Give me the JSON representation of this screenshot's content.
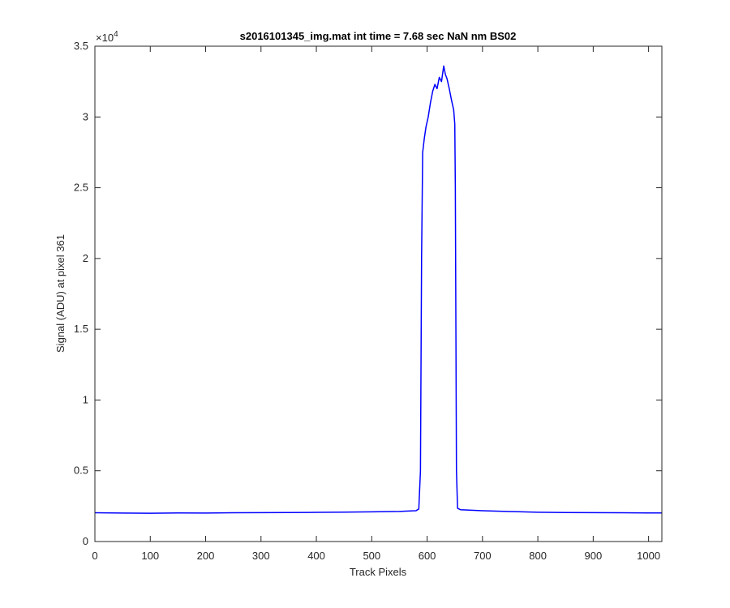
{
  "chart_data": {
    "type": "line",
    "title": "s2016101345_img.mat int time = 7.68 sec  NaN nm BS02",
    "xlabel": "Track Pixels",
    "ylabel": "Signal (ADU) at pixel 361",
    "xlim": [
      0,
      1024
    ],
    "ylim": [
      0,
      35000
    ],
    "x_ticks": [
      0,
      100,
      200,
      300,
      400,
      500,
      600,
      700,
      800,
      900,
      1000
    ],
    "x_tick_labels": [
      "0",
      "100",
      "200",
      "300",
      "400",
      "500",
      "600",
      "700",
      "800",
      "900",
      "1000"
    ],
    "y_ticks": [
      0,
      5000,
      10000,
      15000,
      20000,
      25000,
      30000,
      35000
    ],
    "y_tick_labels": [
      "0",
      "0.5",
      "1",
      "1.5",
      "2",
      "2.5",
      "3",
      "3.5"
    ],
    "y_exponent": {
      "base": "×10",
      "power": "4"
    },
    "grid": false,
    "series": [
      {
        "color": "#0000ff",
        "points": [
          [
            0,
            2030
          ],
          [
            50,
            2010
          ],
          [
            100,
            2000
          ],
          [
            150,
            2020
          ],
          [
            200,
            2010
          ],
          [
            250,
            2030
          ],
          [
            300,
            2040
          ],
          [
            350,
            2050
          ],
          [
            400,
            2060
          ],
          [
            450,
            2080
          ],
          [
            500,
            2100
          ],
          [
            550,
            2130
          ],
          [
            580,
            2180
          ],
          [
            585,
            2300
          ],
          [
            588,
            5000
          ],
          [
            590,
            20000
          ],
          [
            592,
            27500
          ],
          [
            595,
            28500
          ],
          [
            598,
            29300
          ],
          [
            602,
            30000
          ],
          [
            606,
            31000
          ],
          [
            610,
            31800
          ],
          [
            614,
            32300
          ],
          [
            618,
            32000
          ],
          [
            622,
            32800
          ],
          [
            626,
            32500
          ],
          [
            630,
            33600
          ],
          [
            633,
            33000
          ],
          [
            636,
            32700
          ],
          [
            640,
            32000
          ],
          [
            644,
            31200
          ],
          [
            648,
            30500
          ],
          [
            650,
            29500
          ],
          [
            651,
            25000
          ],
          [
            652,
            15000
          ],
          [
            653,
            5000
          ],
          [
            655,
            2350
          ],
          [
            660,
            2250
          ],
          [
            700,
            2180
          ],
          [
            750,
            2120
          ],
          [
            800,
            2070
          ],
          [
            850,
            2050
          ],
          [
            900,
            2040
          ],
          [
            950,
            2030
          ],
          [
            1000,
            2020
          ],
          [
            1024,
            2020
          ]
        ]
      }
    ]
  }
}
